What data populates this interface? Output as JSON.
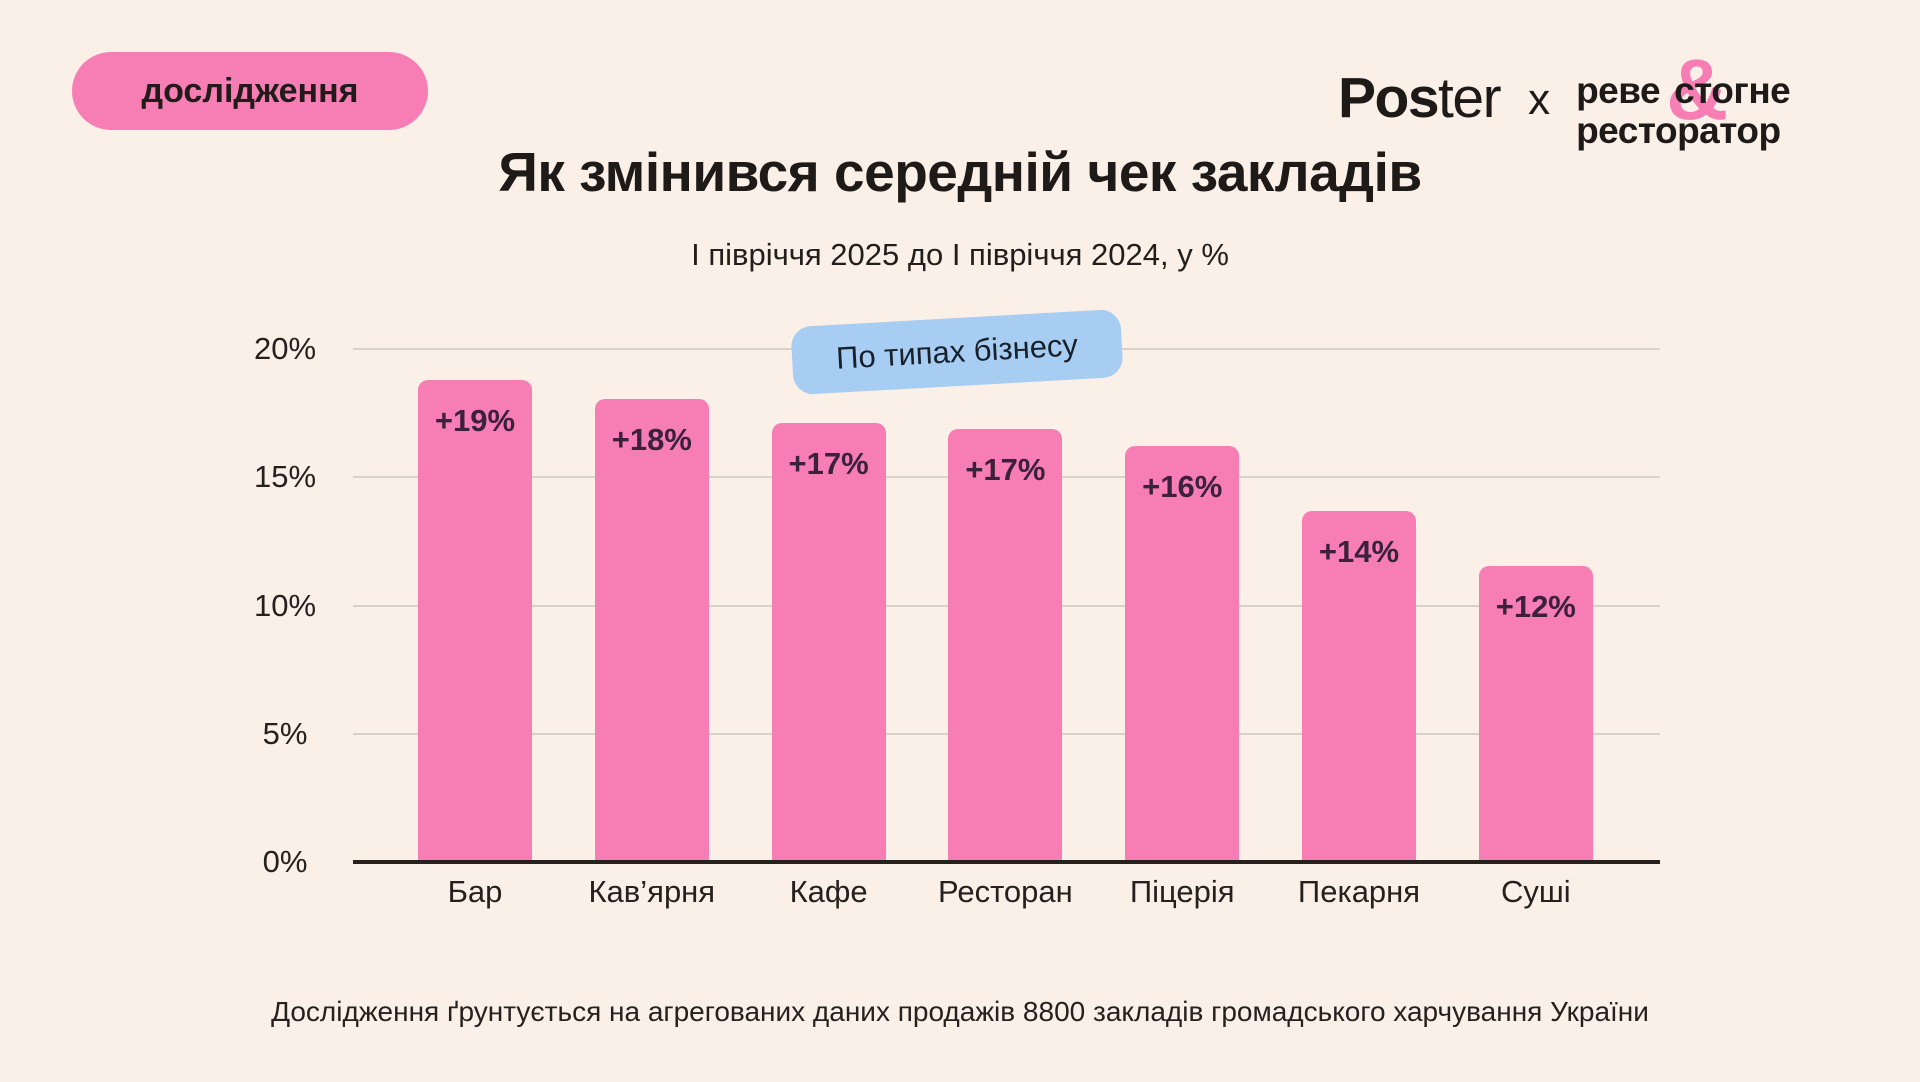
{
  "header": {
    "research_badge": "дослідження",
    "poster_logo_bold": "Pos",
    "poster_logo_light": "ter",
    "logo_separator": "x",
    "brand_line1_part1": "реве",
    "brand_line1_part2": "стогне",
    "brand_line2": "ресторатор",
    "brand_ampersand": "&"
  },
  "chart_data": {
    "type": "bar",
    "title": "Як змінився середній чек закладів",
    "subtitle": "І півріччя 2025 до І півріччя 2024, у %",
    "annotation_badge": "По типах бізнесу",
    "categories": [
      "Бар",
      "Кав’ярня",
      "Кафе",
      "Ресторан",
      "Піцерія",
      "Пекарня",
      "Суші"
    ],
    "values": [
      19,
      18,
      17,
      17,
      16,
      14,
      12
    ],
    "bar_labels": [
      "+19%",
      "+18%",
      "+17%",
      "+17%",
      "+16%",
      "+14%",
      "+12%"
    ],
    "bar_heights_pct": [
      18.8,
      18.05,
      17.1,
      16.9,
      16.2,
      13.7,
      11.55
    ],
    "xlabel": "",
    "ylabel": "",
    "ylim": [
      0,
      20
    ],
    "yticks": [
      {
        "value": 0,
        "label": "0%"
      },
      {
        "value": 5,
        "label": "5%"
      },
      {
        "value": 10,
        "label": "10%"
      },
      {
        "value": 15,
        "label": "15%"
      },
      {
        "value": 20,
        "label": "20%"
      }
    ],
    "grid": true,
    "legend": "none",
    "bar_color": "#F77EB4",
    "bar_label_color": "#3B2139",
    "annotation_badge_color": "#A8CDF3"
  },
  "footer": {
    "note": "Дослідження ґрунтується на агрегованих даних продажів 8800 закладів громадського харчування України"
  },
  "colors": {
    "background": "#FAF0E7",
    "brand_pink": "#F77EB4",
    "accent_blue": "#A8CDF3",
    "text_dark": "#26211C",
    "gridline": "#D8D1C7"
  }
}
